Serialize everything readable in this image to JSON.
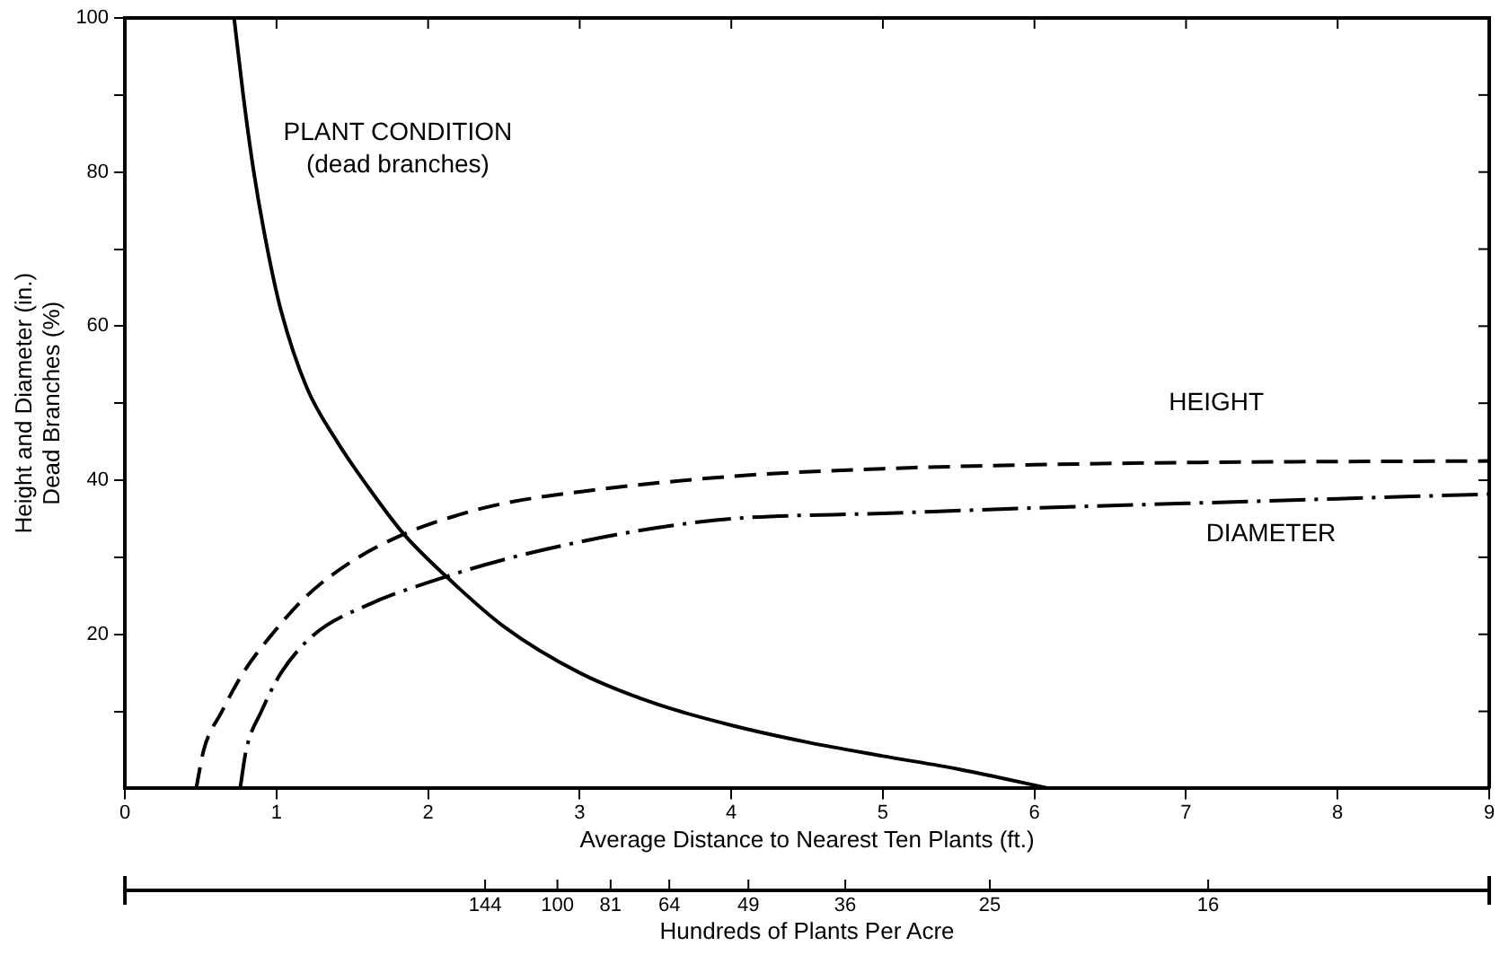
{
  "chart_data": {
    "type": "line",
    "xlabel": "Average Distance to Nearest Ten Plants (ft.)",
    "ylabel": "Height and Diameter (in.)\nDead Branches (%)",
    "x2label": "Hundreds of Plants Per Acre",
    "xlim": [
      0,
      9
    ],
    "xticks": [
      0,
      1,
      2,
      3,
      4,
      5,
      6,
      7,
      8,
      9
    ],
    "ylim": [
      0,
      100
    ],
    "yticks": [
      {
        "value": 10,
        "label": null
      },
      20,
      {
        "value": 30,
        "label": null
      },
      40,
      {
        "value": 50,
        "label": null
      },
      60,
      {
        "value": 70,
        "label": null
      },
      80,
      {
        "value": 90,
        "label": null
      },
      100
    ],
    "annotations": [
      "144",
      "100",
      "81",
      "64",
      "49",
      "36",
      "25",
      "16"
    ],
    "grid": false,
    "legend": false,
    "marker": "none",
    "series": [
      {
        "name": "PLANT CONDITION\n(dead branches)",
        "color": "#000000",
        "line_style": "solid",
        "x": [
          0.72,
          0.78,
          0.85,
          0.94,
          1.03,
          1.2,
          1.4,
          1.59,
          1.84,
          2.12,
          2.5,
          3,
          3.5,
          4,
          4.5,
          5,
          5.5,
          6.1
        ],
        "values": [
          100,
          90,
          80,
          70,
          62,
          52,
          45,
          39.5,
          33,
          27.5,
          21,
          15,
          11,
          8.2,
          6,
          4.2,
          2.5,
          0
        ]
      },
      {
        "name": "HEIGHT",
        "color": "#000000",
        "line_style": "dashed",
        "x": [
          0.47,
          0.52,
          0.64,
          0.78,
          0.97,
          1.2,
          1.5,
          1.84,
          2.2,
          2.5,
          3,
          4,
          5,
          6,
          7,
          9
        ],
        "values": [
          0,
          5,
          10,
          15,
          20,
          25,
          29.5,
          33,
          35.5,
          37,
          38.5,
          40.5,
          41.5,
          42,
          42.3,
          42.5
        ]
      },
      {
        "name": "DIAMETER",
        "color": "#000000",
        "line_style": "dashdot",
        "x": [
          0.76,
          0.8,
          0.9,
          1.03,
          1.25,
          1.6,
          2.12,
          2.5,
          3,
          3.5,
          4,
          5,
          6,
          7,
          8,
          9
        ],
        "values": [
          0,
          5,
          10,
          15,
          20,
          23.8,
          27.5,
          29.7,
          32,
          33.8,
          35,
          35.7,
          36.4,
          37,
          37.6,
          38.2
        ]
      }
    ]
  }
}
